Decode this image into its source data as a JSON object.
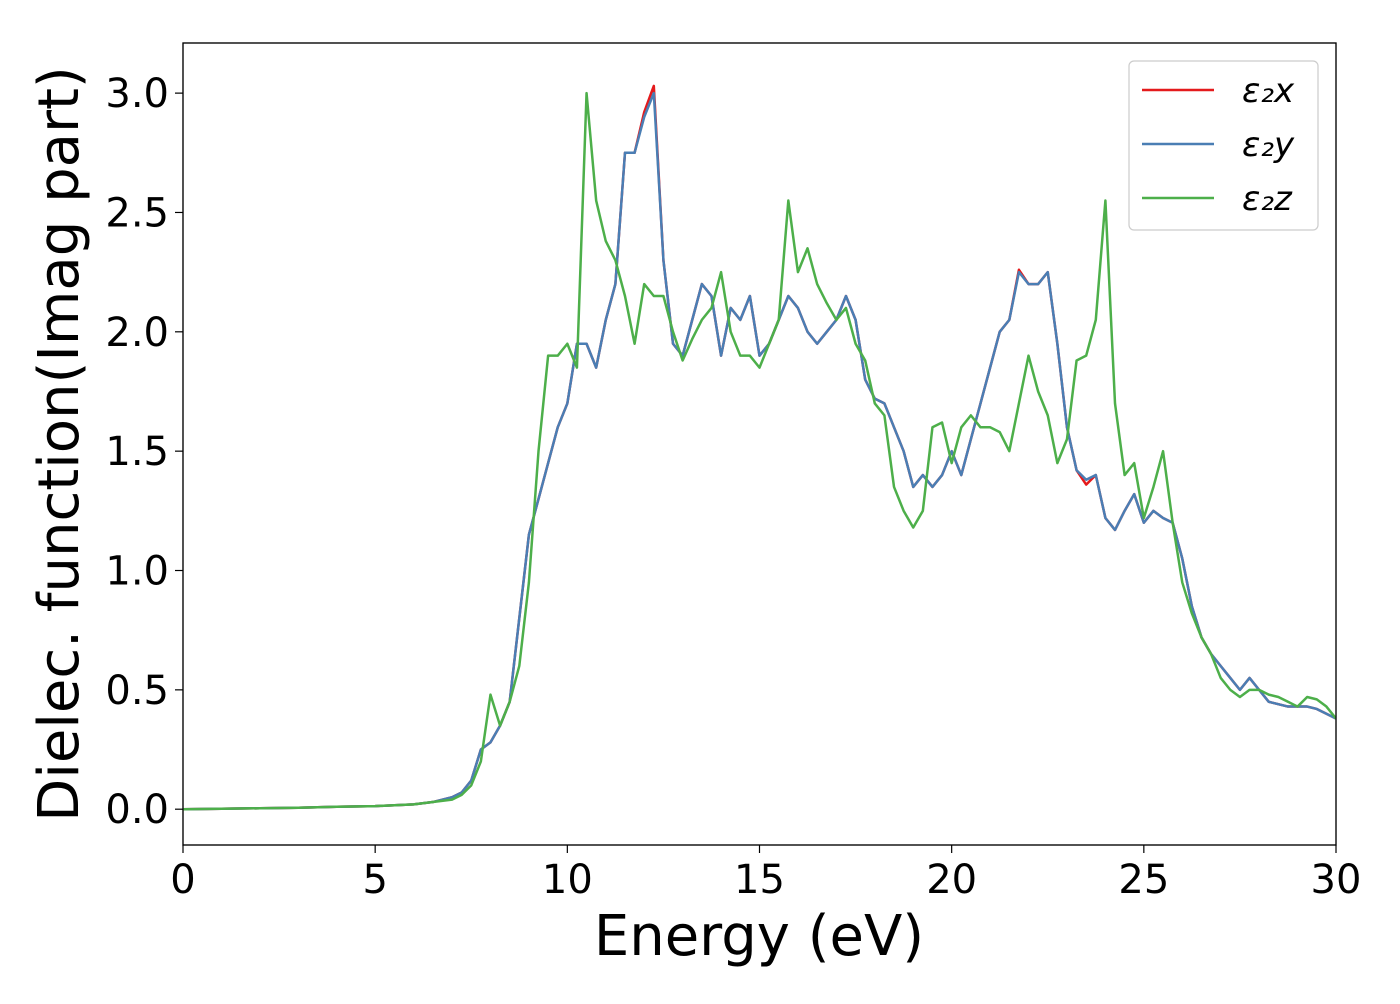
{
  "chart_data": {
    "type": "line",
    "xlabel": "Energy (eV)",
    "ylabel": "Dielec. function(Imag part)",
    "xlim": [
      0,
      30
    ],
    "ylim": [
      -0.15,
      3.21
    ],
    "xticks": [
      0,
      5,
      10,
      15,
      20,
      25,
      30
    ],
    "yticks": [
      {
        "value": 0,
        "label": "0.0"
      },
      0.5,
      {
        "value": 1,
        "label": "1.0"
      },
      1.5,
      {
        "value": 2,
        "label": "2.0"
      },
      2.5,
      {
        "value": 3,
        "label": "3.0"
      }
    ],
    "legend": "upper right",
    "x": [
      0,
      1,
      2,
      3,
      4,
      5,
      6,
      6.5,
      7,
      7.25,
      7.5,
      7.75,
      8,
      8.25,
      8.5,
      8.75,
      9,
      9.25,
      9.5,
      9.75,
      10,
      10.25,
      10.5,
      10.75,
      11,
      11.25,
      11.5,
      11.75,
      12,
      12.25,
      12.5,
      12.75,
      13,
      13.25,
      13.5,
      13.75,
      14,
      14.25,
      14.5,
      14.75,
      15,
      15.25,
      15.5,
      15.75,
      16,
      16.25,
      16.5,
      16.75,
      17,
      17.25,
      17.5,
      17.75,
      18,
      18.25,
      18.5,
      18.75,
      19,
      19.25,
      19.5,
      19.75,
      20,
      20.25,
      20.5,
      20.75,
      21,
      21.25,
      21.5,
      21.75,
      22,
      22.25,
      22.5,
      22.75,
      23,
      23.25,
      23.5,
      23.75,
      24,
      24.25,
      24.5,
      24.75,
      25,
      25.25,
      25.5,
      25.75,
      26,
      26.25,
      26.5,
      26.75,
      27,
      27.25,
      27.5,
      27.75,
      28,
      28.25,
      28.5,
      28.75,
      29,
      29.25,
      29.5,
      29.75,
      30
    ],
    "series": [
      {
        "name": "ε₂x",
        "color": "#e41a1c",
        "values": [
          0,
          0.002,
          0.004,
          0.006,
          0.01,
          0.013,
          0.02,
          0.03,
          0.05,
          0.07,
          0.12,
          0.25,
          0.28,
          0.35,
          0.45,
          0.8,
          1.15,
          1.3,
          1.45,
          1.6,
          1.7,
          1.95,
          1.95,
          1.85,
          2.05,
          2.2,
          2.75,
          2.75,
          2.92,
          3.03,
          2.3,
          1.95,
          1.9,
          2.05,
          2.2,
          2.15,
          1.9,
          2.1,
          2.05,
          2.15,
          1.9,
          1.95,
          2.05,
          2.15,
          2.1,
          2,
          1.95,
          2,
          2.05,
          2.15,
          2.05,
          1.8,
          1.72,
          1.7,
          1.6,
          1.5,
          1.35,
          1.4,
          1.35,
          1.4,
          1.5,
          1.4,
          1.55,
          1.7,
          1.85,
          2,
          2.05,
          2.26,
          2.2,
          2.2,
          2.25,
          1.95,
          1.6,
          1.42,
          1.36,
          1.4,
          1.22,
          1.17,
          1.25,
          1.32,
          1.2,
          1.25,
          1.22,
          1.2,
          1.05,
          0.85,
          0.72,
          0.65,
          0.6,
          0.55,
          0.5,
          0.55,
          0.5,
          0.45,
          0.44,
          0.43,
          0.43,
          0.43,
          0.42,
          0.4,
          0.38
        ]
      },
      {
        "name": "ε₂y",
        "color": "#4a7eb4",
        "values": [
          0,
          0.002,
          0.004,
          0.006,
          0.01,
          0.013,
          0.02,
          0.03,
          0.05,
          0.07,
          0.12,
          0.25,
          0.28,
          0.35,
          0.45,
          0.8,
          1.15,
          1.3,
          1.45,
          1.6,
          1.7,
          1.95,
          1.95,
          1.85,
          2.05,
          2.2,
          2.75,
          2.75,
          2.9,
          3,
          2.3,
          1.95,
          1.9,
          2.05,
          2.2,
          2.15,
          1.9,
          2.1,
          2.05,
          2.15,
          1.9,
          1.95,
          2.05,
          2.15,
          2.1,
          2,
          1.95,
          2,
          2.05,
          2.15,
          2.05,
          1.8,
          1.72,
          1.7,
          1.6,
          1.5,
          1.35,
          1.4,
          1.35,
          1.4,
          1.5,
          1.4,
          1.55,
          1.7,
          1.85,
          2,
          2.05,
          2.25,
          2.2,
          2.2,
          2.25,
          1.95,
          1.6,
          1.42,
          1.38,
          1.4,
          1.22,
          1.17,
          1.25,
          1.32,
          1.2,
          1.25,
          1.22,
          1.2,
          1.05,
          0.85,
          0.72,
          0.65,
          0.6,
          0.55,
          0.5,
          0.55,
          0.5,
          0.45,
          0.44,
          0.43,
          0.43,
          0.43,
          0.42,
          0.4,
          0.38
        ]
      },
      {
        "name": "ε₂z",
        "color": "#4daf4a",
        "values": [
          0,
          0.002,
          0.004,
          0.006,
          0.01,
          0.013,
          0.02,
          0.03,
          0.04,
          0.06,
          0.1,
          0.2,
          0.48,
          0.35,
          0.45,
          0.6,
          0.95,
          1.5,
          1.9,
          1.9,
          1.95,
          1.85,
          3,
          2.55,
          2.38,
          2.3,
          2.15,
          1.95,
          2.2,
          2.15,
          2.15,
          2,
          1.88,
          1.97,
          2.05,
          2.1,
          2.25,
          2,
          1.9,
          1.9,
          1.85,
          1.95,
          2.05,
          2.55,
          2.25,
          2.35,
          2.2,
          2.12,
          2.05,
          2.1,
          1.95,
          1.88,
          1.7,
          1.65,
          1.35,
          1.25,
          1.18,
          1.25,
          1.6,
          1.62,
          1.45,
          1.6,
          1.65,
          1.6,
          1.6,
          1.58,
          1.5,
          1.7,
          1.9,
          1.75,
          1.65,
          1.45,
          1.55,
          1.88,
          1.9,
          2.05,
          2.55,
          1.7,
          1.4,
          1.45,
          1.22,
          1.35,
          1.5,
          1.2,
          0.95,
          0.82,
          0.72,
          0.65,
          0.55,
          0.5,
          0.47,
          0.5,
          0.5,
          0.48,
          0.47,
          0.45,
          0.43,
          0.47,
          0.46,
          0.43,
          0.38
        ]
      }
    ]
  }
}
